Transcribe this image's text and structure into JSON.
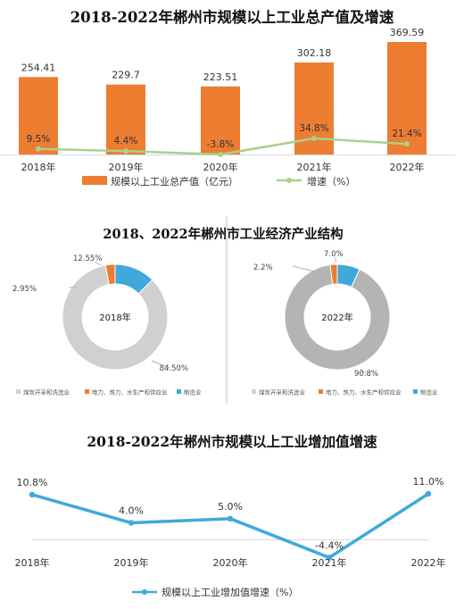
{
  "chart_data": [
    {
      "type": "bar",
      "title": "2018-2022年郴州市规模以上工业总产值及增速",
      "categories": [
        "2018年",
        "2019年",
        "2020年",
        "2021年",
        "2022年"
      ],
      "series": [
        {
          "name": "规模以上工业总产值（亿元）",
          "type": "bar",
          "values": [
            254.41,
            229.7,
            223.51,
            302.18,
            369.59
          ],
          "labels": [
            "254.41",
            "229.7",
            "223.51",
            "302.18",
            "369.59"
          ],
          "color": "#ED7D31"
        },
        {
          "name": "增速（%）",
          "type": "line",
          "values": [
            9.5,
            4.4,
            -3.8,
            34.8,
            21.4
          ],
          "labels": [
            "9.5%",
            "4.4%",
            "-3.8%",
            "34.8%",
            "21.4%"
          ],
          "color": "#A9D18E"
        }
      ],
      "legend_position": "bottom"
    },
    {
      "type": "pie",
      "title": "2018、2022年郴州市工业经济产业结构",
      "legend": [
        {
          "name": "煤炭开采和洗选业",
          "color": "#D0D0D0"
        },
        {
          "name": "电力、热力、水生产和供应业",
          "color": "#ED7D31"
        },
        {
          "name": "制造业",
          "color": "#3FA9DC"
        }
      ],
      "charts": [
        {
          "center_label": "2018年",
          "values": [
            84.5,
            2.95,
            12.55
          ],
          "labels": [
            "84.50%",
            "2.95%",
            "12.55%"
          ],
          "colors": [
            "#D0D0D0",
            "#ED7D31",
            "#3FA9DC"
          ]
        },
        {
          "center_label": "2022年",
          "values": [
            90.8,
            2.2,
            7.0
          ],
          "labels": [
            "90.8%",
            "2.2%",
            "7.0%"
          ],
          "colors": [
            "#B4B4B4",
            "#ED7D31",
            "#3FA9DC"
          ]
        }
      ]
    },
    {
      "type": "line",
      "title": "2018-2022年郴州市规模以上工业增加值增速",
      "categories": [
        "2018年",
        "2019年",
        "2020年",
        "2021年",
        "2022年"
      ],
      "series": [
        {
          "name": "规模以上工业增加值增速（%）",
          "values": [
            10.8,
            4.0,
            5.0,
            -4.4,
            11.0
          ],
          "labels": [
            "10.8%",
            "4.0%",
            "5.0%",
            "-4.4%",
            "11.0%"
          ],
          "color": "#3FA9DC"
        }
      ],
      "legend_position": "bottom"
    }
  ]
}
